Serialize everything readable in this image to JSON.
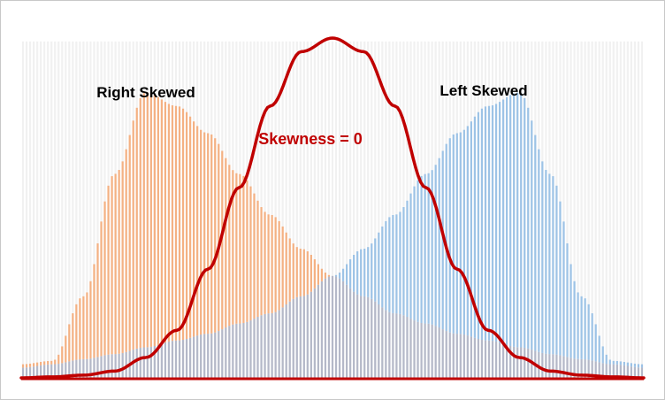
{
  "chart_data": {
    "type": "bar",
    "title": "",
    "xlabel": "",
    "ylabel": "",
    "grid": false,
    "legend": "none",
    "ylim": [
      0,
      1.0
    ],
    "annotations": {
      "right_skewed": "Right Skewed",
      "left_skewed": "Left Skewed",
      "normal": "Skewness = 0"
    },
    "series": [
      {
        "key": "right",
        "kind": "bar",
        "color": "#f4b183",
        "x": [
          0,
          0.05,
          0.1,
          0.15,
          0.2,
          0.25,
          0.3,
          0.35,
          0.4,
          0.45,
          0.5,
          0.55,
          0.6,
          0.65,
          0.7,
          0.75,
          0.8,
          0.85,
          0.9,
          0.95,
          1.0
        ],
        "values": [
          0.04,
          0.05,
          0.24,
          0.6,
          0.84,
          0.8,
          0.72,
          0.6,
          0.48,
          0.38,
          0.3,
          0.24,
          0.19,
          0.16,
          0.13,
          0.11,
          0.09,
          0.07,
          0.055,
          0.04,
          0.03
        ]
      },
      {
        "key": "left",
        "kind": "bar",
        "color": "#9dc3e6",
        "x": [
          0,
          0.05,
          0.1,
          0.15,
          0.2,
          0.25,
          0.3,
          0.35,
          0.4,
          0.45,
          0.5,
          0.55,
          0.6,
          0.65,
          0.7,
          0.75,
          0.8,
          0.85,
          0.9,
          0.95,
          1.0
        ],
        "values": [
          0.03,
          0.04,
          0.055,
          0.07,
          0.09,
          0.11,
          0.13,
          0.16,
          0.19,
          0.24,
          0.3,
          0.38,
          0.48,
          0.6,
          0.72,
          0.8,
          0.84,
          0.6,
          0.24,
          0.05,
          0.04
        ]
      },
      {
        "key": "normal",
        "kind": "line",
        "color": "#c00000",
        "x": [
          0,
          0.05,
          0.1,
          0.15,
          0.2,
          0.25,
          0.3,
          0.35,
          0.4,
          0.45,
          0.5,
          0.55,
          0.6,
          0.65,
          0.7,
          0.75,
          0.8,
          0.85,
          0.9,
          0.95,
          1.0
        ],
        "values": [
          0.0,
          0.003,
          0.008,
          0.02,
          0.06,
          0.14,
          0.32,
          0.56,
          0.8,
          0.96,
          1.0,
          0.96,
          0.8,
          0.56,
          0.32,
          0.14,
          0.06,
          0.02,
          0.008,
          0.003,
          0.0
        ]
      }
    ]
  }
}
